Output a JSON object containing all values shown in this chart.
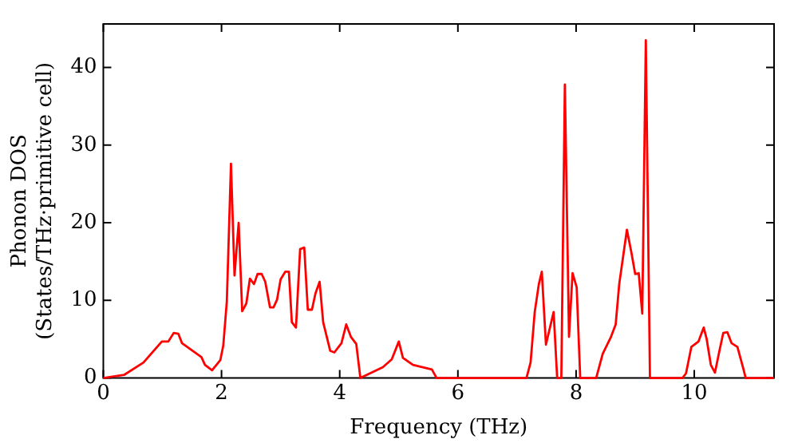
{
  "chart_data": {
    "type": "line",
    "xlabel": "Frequency (THz)",
    "ylabel": "Phonon DOS\n(States/THz·primitive cell)",
    "xlim": [
      0,
      11.35
    ],
    "ylim": [
      0,
      45.6
    ],
    "xticks": [
      0,
      2,
      4,
      6,
      8,
      10
    ],
    "yticks": [
      0,
      10,
      20,
      30,
      40
    ],
    "grid": false,
    "legend": false,
    "marker": "none",
    "line_style": "solid",
    "series": [
      {
        "color": "#ff0000",
        "x": [
          0,
          0.35,
          0.68,
          0.99,
          1.1,
          1.19,
          1.27,
          1.33,
          1.66,
          1.72,
          1.84,
          1.98,
          2.03,
          2.09,
          2.16,
          2.22,
          2.29,
          2.35,
          2.42,
          2.48,
          2.55,
          2.61,
          2.68,
          2.74,
          2.82,
          2.88,
          2.94,
          3.0,
          3.08,
          3.14,
          3.19,
          3.26,
          3.33,
          3.4,
          3.46,
          3.53,
          3.59,
          3.66,
          3.72,
          3.84,
          3.91,
          4.03,
          4.11,
          4.19,
          4.28,
          4.35,
          4.73,
          4.88,
          5.0,
          5.07,
          5.24,
          5.56,
          5.64,
          6.03,
          7.16,
          7.23,
          7.3,
          7.37,
          7.42,
          7.49,
          7.62,
          7.68,
          7.75,
          7.81,
          7.88,
          7.94,
          8.01,
          8.07,
          8.34,
          8.45,
          8.59,
          8.67,
          8.73,
          8.86,
          8.94,
          9.0,
          9.06,
          9.12,
          9.18,
          9.25,
          9.8,
          9.86,
          9.95,
          10.07,
          10.16,
          10.21,
          10.28,
          10.35,
          10.42,
          10.49,
          10.56,
          10.63,
          10.73,
          10.83,
          10.87,
          11.35
        ],
        "values": [
          0,
          0.4,
          2,
          4.7,
          4.7,
          5.8,
          5.7,
          4.5,
          2.7,
          1.7,
          1.0,
          2.3,
          4.2,
          9.9,
          27.6,
          13.2,
          20,
          8.6,
          9.6,
          12.8,
          12.1,
          13.4,
          13.4,
          12.4,
          9.1,
          9.1,
          10.1,
          12.7,
          13.7,
          13.7,
          7.2,
          6.5,
          16.6,
          16.8,
          8.8,
          8.8,
          10.9,
          12.4,
          7.2,
          3.5,
          3.3,
          4.5,
          6.9,
          5.3,
          4.4,
          0,
          1.4,
          2.4,
          4.7,
          2.6,
          1.7,
          1.1,
          0,
          0,
          0,
          2,
          8.5,
          12.1,
          13.7,
          4.3,
          8.5,
          0,
          0,
          37.8,
          5.3,
          13.5,
          11.7,
          0,
          0,
          3.1,
          5.3,
          6.9,
          12.1,
          19.1,
          16,
          13.4,
          13.5,
          8.3,
          43.5,
          0,
          0,
          0.6,
          4,
          4.7,
          6.5,
          5,
          1.7,
          0.7,
          3.3,
          5.8,
          5.9,
          4.5,
          4,
          1.2,
          0,
          0
        ]
      }
    ]
  }
}
